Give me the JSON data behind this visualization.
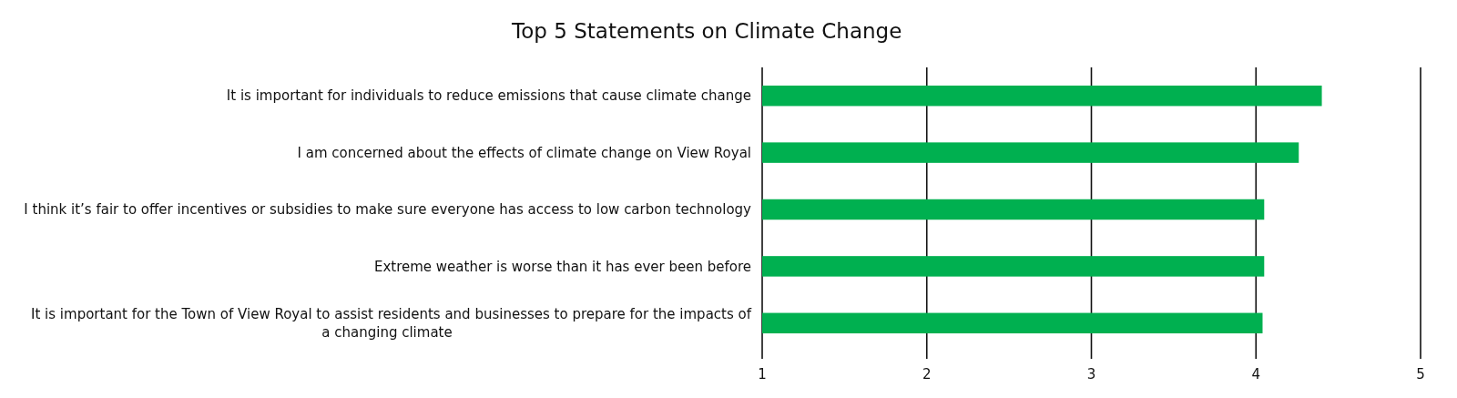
{
  "chart_data": {
    "type": "bar",
    "orientation": "horizontal",
    "title": "Top 5 Statements on Climate Change",
    "categories": [
      "It is important for individuals to reduce emissions that cause climate change",
      "I am concerned about the effects of climate change on View Royal",
      "I think it’s fair to offer incentives or subsidies to make sure everyone has access to low carbon technology",
      "Extreme weather is worse than it has ever been before",
      "It is important for the Town of View Royal to assist residents and businesses to prepare for the impacts of a changing climate"
    ],
    "values": [
      4.4,
      4.26,
      4.05,
      4.05,
      4.04
    ],
    "color": "#00b050",
    "xlim": [
      1,
      5
    ],
    "xticks": [
      1,
      2,
      3,
      4,
      5
    ],
    "grid": "x"
  }
}
